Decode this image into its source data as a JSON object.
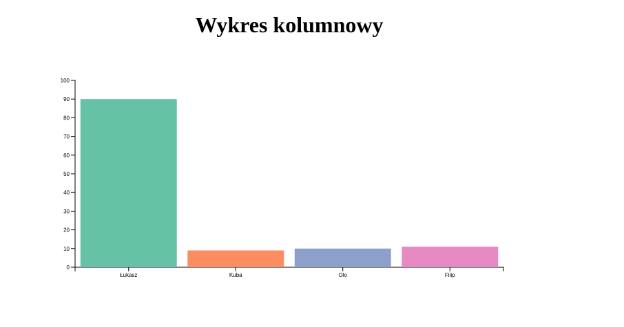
{
  "page": {
    "title": "Wykres kolumnowy"
  },
  "chart_data": {
    "type": "bar",
    "title": "Wykres kolumnowy",
    "categories": [
      "Łukasz",
      "Kuba",
      "Olo",
      "Filip"
    ],
    "values": [
      90,
      9,
      10,
      11
    ],
    "colors": [
      "#66c2a5",
      "#fc8d62",
      "#8da0cb",
      "#e78ac3"
    ],
    "xlabel": "",
    "ylabel": "",
    "ylim": [
      0,
      100
    ],
    "yticks": [
      0,
      10,
      20,
      30,
      40,
      50,
      60,
      70,
      80,
      90,
      100
    ],
    "grid": false,
    "legend": "none"
  }
}
